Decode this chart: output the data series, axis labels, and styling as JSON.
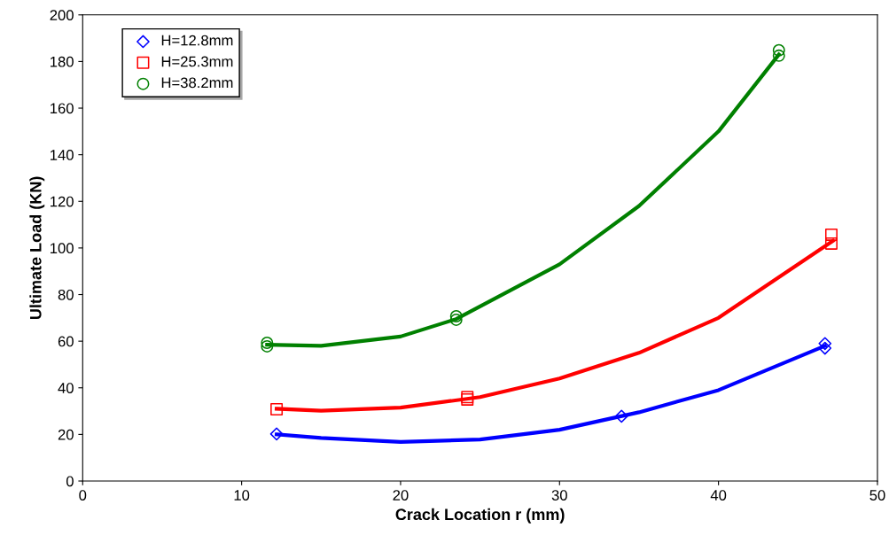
{
  "chart_data": {
    "type": "scatter",
    "xlabel": "Crack Location r (mm)",
    "ylabel": "Ultimate Load (KN)",
    "xlim": [
      0,
      50
    ],
    "xticks": [
      0,
      10,
      20,
      30,
      40,
      50
    ],
    "ylim": [
      0,
      200
    ],
    "yticks": [
      0,
      20,
      40,
      60,
      80,
      100,
      120,
      140,
      160,
      180,
      200
    ],
    "grid": false,
    "legend": "top left",
    "series": [
      {
        "name": "H=12.8mm",
        "marker": "diamond",
        "color": "#0000ff",
        "x": [
          12.2,
          33.9,
          46.7,
          46.7
        ],
        "values": [
          20.2,
          27.8,
          57,
          59
        ]
      },
      {
        "name": "H=25.3mm",
        "marker": "square",
        "color": "#ff0000",
        "x": [
          12.2,
          24.2,
          24.2,
          47.1,
          47.1
        ],
        "values": [
          30.8,
          35,
          36,
          101.9,
          105.7
        ]
      },
      {
        "name": "H=38.2mm",
        "marker": "circle",
        "color": "#008000",
        "x": [
          11.6,
          11.6,
          23.5,
          23.5,
          43.8,
          43.8
        ],
        "values": [
          57.8,
          59.3,
          69.2,
          70.7,
          182.5,
          184.8
        ]
      },
      {
        "type": "line",
        "marker": "none",
        "color": "#0000ff",
        "x": [
          12.2,
          15,
          20,
          25,
          30,
          35,
          40,
          46.7
        ],
        "values": [
          20,
          18.5,
          16.8,
          17.8,
          22,
          29.5,
          39,
          58
        ]
      },
      {
        "type": "line",
        "marker": "none",
        "color": "#ff0000",
        "x": [
          12.2,
          15,
          20,
          25,
          30,
          35,
          40,
          47.2
        ],
        "values": [
          31,
          30.2,
          31.5,
          36,
          44,
          55,
          70,
          103
        ]
      },
      {
        "type": "line",
        "marker": "none",
        "color": "#008000",
        "x": [
          11.6,
          15,
          20,
          23.5,
          30,
          35,
          40,
          43.8
        ],
        "values": [
          58.5,
          58,
          62,
          69.5,
          93,
          118,
          150,
          183
        ]
      }
    ]
  }
}
